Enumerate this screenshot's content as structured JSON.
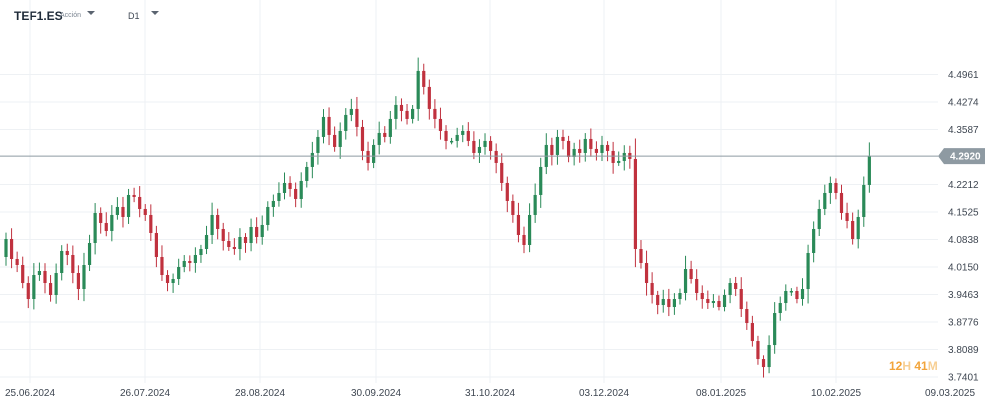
{
  "toolbar": {
    "symbol": "TEF1.ES",
    "asset_type": "Acción",
    "timeframe": "D1"
  },
  "countdown": {
    "hours": "12",
    "hours_unit": "H",
    "minutes": "41",
    "minutes_unit": "M"
  },
  "colors": {
    "up": "#2a8a58",
    "down": "#c0313e",
    "price_line": "#8e9aa2",
    "badge": "#8e9aa2",
    "grid": "#eef1f4"
  },
  "chart_data": {
    "type": "candlestick",
    "symbol": "TEF1.ES",
    "timeframe": "D1",
    "current_price": "4.2920",
    "y_ticks": [
      "4.4961",
      "4.4274",
      "4.3587",
      "4.2212",
      "4.1525",
      "4.0838",
      "4.0150",
      "3.9463",
      "3.8776",
      "3.8089",
      "3.7401"
    ],
    "ylim": [
      3.7401,
      4.5648
    ],
    "x_ticks": [
      "25.06.2024",
      "26.07.2024",
      "28.08.2024",
      "30.09.2024",
      "31.10.2024",
      "03.12.2024",
      "08.01.2025",
      "10.02.2025",
      "09.03.2025"
    ],
    "grid": true,
    "closes": [
      4.085,
      4.035,
      4.02,
      3.975,
      3.935,
      3.995,
      4.005,
      3.975,
      3.945,
      4.0,
      4.055,
      4.045,
      4.0,
      3.96,
      4.02,
      4.075,
      4.15,
      4.125,
      4.105,
      4.145,
      4.165,
      4.14,
      4.195,
      4.19,
      4.16,
      4.145,
      4.1,
      4.04,
      3.995,
      3.975,
      3.985,
      4.015,
      4.03,
      4.025,
      4.045,
      4.06,
      4.095,
      4.145,
      4.11,
      4.08,
      4.065,
      4.06,
      4.09,
      4.075,
      4.115,
      4.09,
      4.12,
      4.165,
      4.18,
      4.2,
      4.225,
      4.21,
      4.185,
      4.23,
      4.265,
      4.3,
      4.34,
      4.39,
      4.345,
      4.315,
      4.355,
      4.395,
      4.41,
      4.365,
      4.305,
      4.275,
      4.32,
      4.35,
      4.34,
      4.385,
      4.42,
      4.405,
      4.385,
      4.41,
      4.505,
      4.465,
      4.41,
      4.385,
      4.355,
      4.33,
      4.33,
      4.345,
      4.355,
      4.33,
      4.3,
      4.315,
      4.33,
      4.305,
      4.275,
      4.225,
      4.18,
      4.145,
      4.095,
      4.07,
      4.145,
      4.195,
      4.265,
      4.32,
      4.295,
      4.34,
      4.33,
      4.29,
      4.31,
      4.3,
      4.335,
      4.31,
      4.3,
      4.32,
      4.305,
      4.275,
      4.28,
      4.3,
      4.285,
      4.06,
      4.025,
      3.975,
      3.945,
      3.92,
      3.935,
      3.915,
      3.935,
      3.95,
      4.01,
      3.985,
      3.95,
      3.935,
      3.925,
      3.93,
      3.915,
      3.945,
      3.975,
      3.96,
      3.91,
      3.875,
      3.83,
      3.785,
      3.765,
      3.82,
      3.9,
      3.925,
      3.955,
      3.955,
      3.935,
      3.96,
      4.05,
      4.11,
      4.16,
      4.2,
      4.225,
      4.2,
      4.15,
      4.13,
      4.085,
      4.14,
      4.22,
      4.292
    ]
  }
}
